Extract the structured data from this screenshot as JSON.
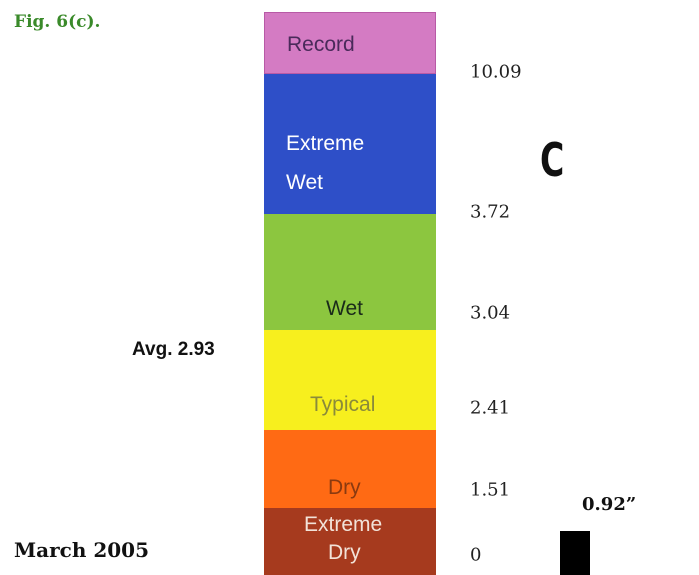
{
  "figure_label": "Fig. 6(c).",
  "panel_letter": "C",
  "month_label": "March 2005",
  "average_label": "Avg. 2.93",
  "value_label": "0.92”",
  "colors": {
    "record": "#d47bc3",
    "extreme_wet": "#2e4fc8",
    "wet": "#8cc63f",
    "typical": "#f7ef1e",
    "dry": "#ff6a14",
    "extreme_dry": "#a63a1e",
    "figure_label": "#3a8a2a"
  },
  "chart_data": {
    "type": "bar",
    "ylim": [
      0,
      10.09
    ],
    "categories": [
      {
        "name": "Record",
        "range": [
          10.09,
          10.09
        ]
      },
      {
        "name": "Extreme Wet",
        "range": [
          3.72,
          10.09
        ]
      },
      {
        "name": "Wet",
        "range": [
          3.04,
          3.72
        ]
      },
      {
        "name": "Typical",
        "range": [
          2.41,
          3.04
        ]
      },
      {
        "name": "Dry",
        "range": [
          1.51,
          2.41
        ]
      },
      {
        "name": "Extreme Dry",
        "range": [
          0,
          1.51
        ]
      }
    ],
    "tick_labels": [
      "10.09",
      "3.72",
      "3.04",
      "2.41",
      "1.51",
      "0"
    ],
    "average": 2.93,
    "value": 0.92
  },
  "bands": [
    {
      "key": "record",
      "lines": [
        "Record"
      ]
    },
    {
      "key": "extreme_wet",
      "lines": [
        "Extreme",
        "Wet"
      ]
    },
    {
      "key": "wet",
      "lines": [
        "Wet"
      ]
    },
    {
      "key": "typical",
      "lines": [
        "Typical"
      ]
    },
    {
      "key": "dry",
      "lines": [
        "Dry"
      ]
    },
    {
      "key": "extreme_dry",
      "lines": [
        "Extreme",
        "Dry"
      ]
    }
  ]
}
